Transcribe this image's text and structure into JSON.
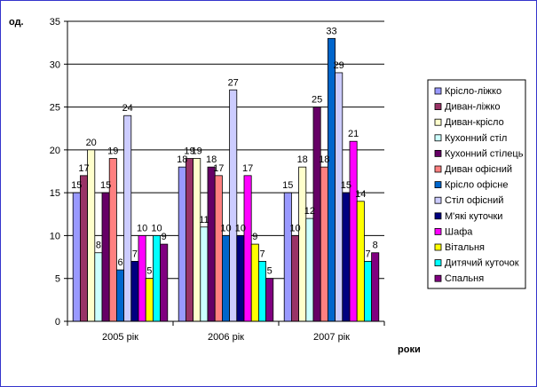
{
  "chart_data": {
    "type": "bar",
    "ylabel": "од.",
    "xlabel": "роки",
    "ylim": [
      0,
      35
    ],
    "yticks": [
      0,
      5,
      10,
      15,
      20,
      25,
      30,
      35
    ],
    "grid": true,
    "legend_position": "right",
    "categories": [
      "2005 рік",
      "2006 рік",
      "2007 рік"
    ],
    "series": [
      {
        "name": "Крісло-ліжко",
        "color": "#9999ff",
        "values": [
          15,
          18,
          15
        ]
      },
      {
        "name": "Диван-ліжко",
        "color": "#993366",
        "values": [
          17,
          19,
          10
        ]
      },
      {
        "name": "Диван-крісло",
        "color": "#ffffcc",
        "values": [
          20,
          19,
          18
        ]
      },
      {
        "name": "Кухонний стіл",
        "color": "#ccffff",
        "values": [
          8,
          11,
          12
        ]
      },
      {
        "name": "Кухонний стілець",
        "color": "#660066",
        "values": [
          15,
          18,
          25
        ]
      },
      {
        "name": "Диван офісний",
        "color": "#ff8080",
        "values": [
          19,
          17,
          18
        ]
      },
      {
        "name": "Крісло офісне",
        "color": "#0066cc",
        "values": [
          6,
          10,
          33
        ]
      },
      {
        "name": "Стіл офісний",
        "color": "#ccccff",
        "values": [
          24,
          27,
          29
        ]
      },
      {
        "name": "М'які куточки",
        "color": "#000080",
        "values": [
          7,
          10,
          15
        ]
      },
      {
        "name": "Шафа",
        "color": "#ff00ff",
        "values": [
          10,
          17,
          21
        ]
      },
      {
        "name": "Вітальня",
        "color": "#ffff00",
        "values": [
          5,
          9,
          14
        ]
      },
      {
        "name": "Дитячий куточок",
        "color": "#00ffff",
        "values": [
          10,
          7,
          7
        ]
      },
      {
        "name": "Спальня",
        "color": "#800080",
        "values": [
          9,
          5,
          8
        ]
      }
    ]
  }
}
